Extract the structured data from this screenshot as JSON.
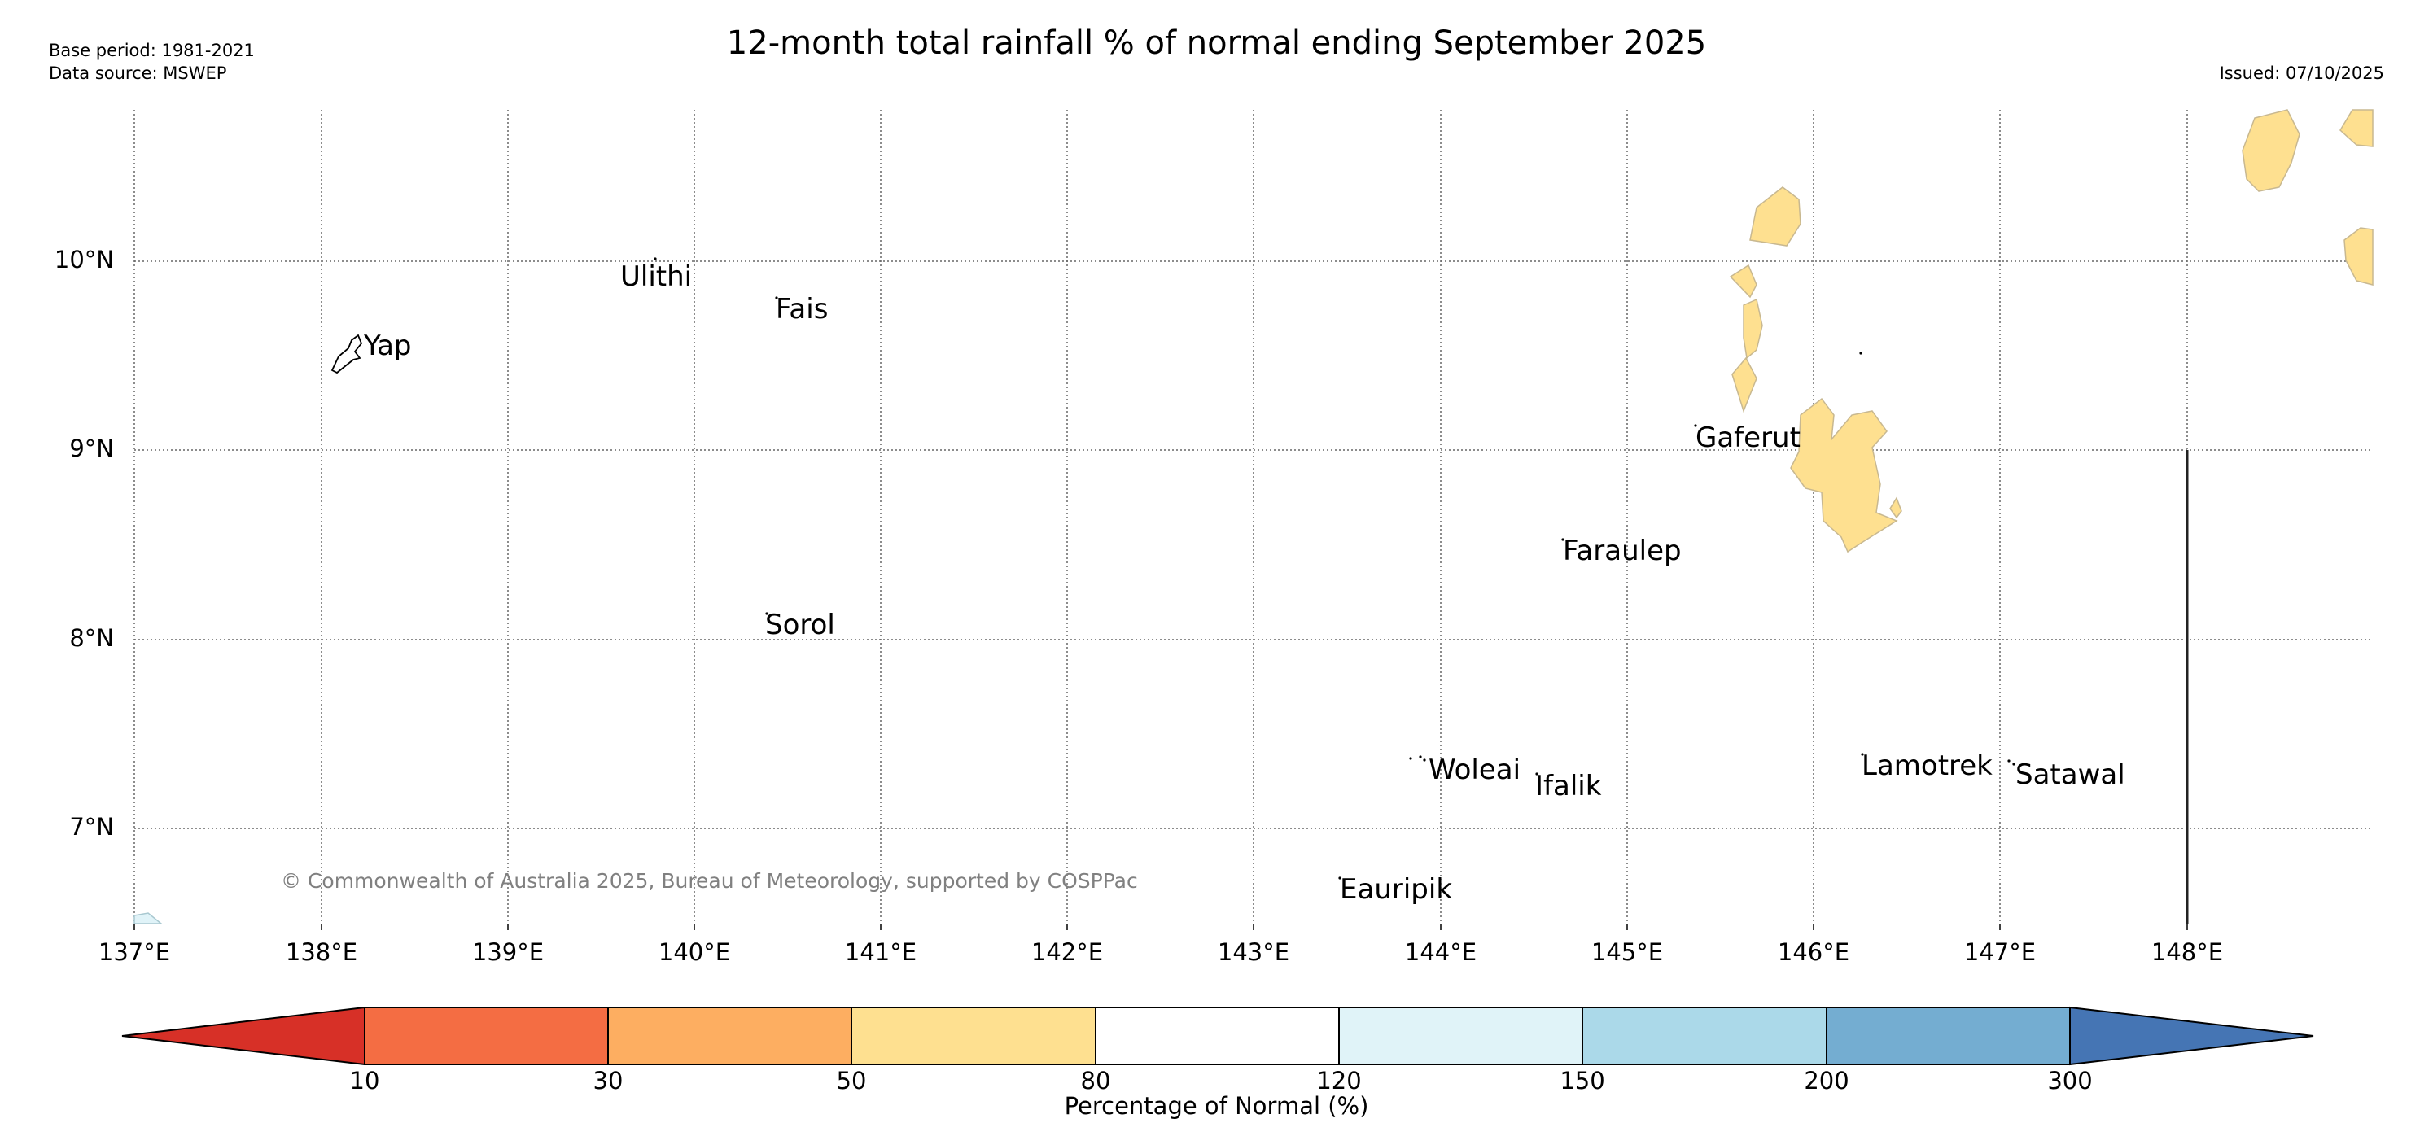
{
  "header": {
    "title": "12-month total rainfall % of normal ending September 2025",
    "base_period": "Base period: 1981-2021",
    "data_source": "Data source: MSWEP",
    "issued": "Issued: 07/10/2025"
  },
  "map": {
    "longitude_labels": [
      "137°E",
      "138°E",
      "139°E",
      "140°E",
      "141°E",
      "142°E",
      "143°E",
      "144°E",
      "145°E",
      "146°E",
      "147°E",
      "148°E"
    ],
    "latitude_labels": [
      "10°N",
      "9°N",
      "8°N",
      "7°N"
    ],
    "islands": [
      "Yap",
      "Ulithi",
      "Fais",
      "Gaferut",
      "Faraulep",
      "Sorol",
      "Woleai",
      "Ifalik",
      "Lamotrek",
      "Satawal",
      "Eauripik"
    ],
    "copyright": "© Commonwealth of Australia 2025, Bureau of Meteorology, supported by COSPPac",
    "shading_colors": {
      "50-80": "#fee090",
      "120-150": "#e0f3f8"
    }
  },
  "colorbar": {
    "label": "Percentage of Normal (%)",
    "ticks": [
      "10",
      "30",
      "50",
      "80",
      "120",
      "150",
      "200",
      "300"
    ],
    "colors": [
      "#d73027",
      "#f46d43",
      "#fdae61",
      "#fee090",
      "#ffffff",
      "#e0f3f8",
      "#abd9e9",
      "#74add1",
      "#4575b4"
    ]
  }
}
